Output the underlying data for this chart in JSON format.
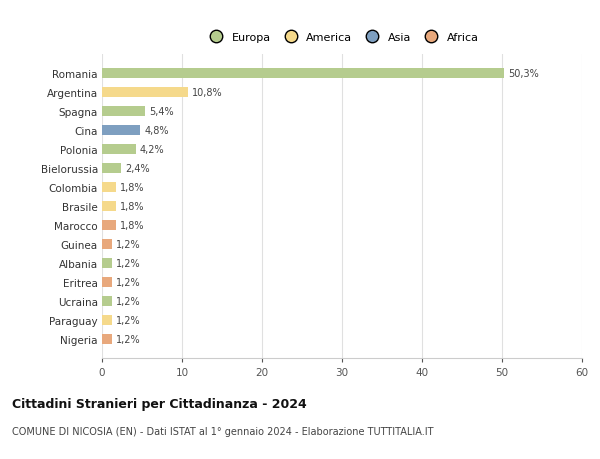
{
  "countries": [
    "Romania",
    "Argentina",
    "Spagna",
    "Cina",
    "Polonia",
    "Bielorussia",
    "Colombia",
    "Brasile",
    "Marocco",
    "Guinea",
    "Albania",
    "Eritrea",
    "Ucraina",
    "Paraguay",
    "Nigeria"
  ],
  "values": [
    50.3,
    10.8,
    5.4,
    4.8,
    4.2,
    2.4,
    1.8,
    1.8,
    1.8,
    1.2,
    1.2,
    1.2,
    1.2,
    1.2,
    1.2
  ],
  "labels": [
    "50,3%",
    "10,8%",
    "5,4%",
    "4,8%",
    "4,2%",
    "2,4%",
    "1,8%",
    "1,8%",
    "1,8%",
    "1,2%",
    "1,2%",
    "1,2%",
    "1,2%",
    "1,2%",
    "1,2%"
  ],
  "continents": [
    "Europa",
    "America",
    "Europa",
    "Asia",
    "Europa",
    "Europa",
    "America",
    "America",
    "Africa",
    "Africa",
    "Europa",
    "Africa",
    "Europa",
    "America",
    "Africa"
  ],
  "continent_colors": {
    "Europa": "#b5cc8e",
    "America": "#f5d98b",
    "Asia": "#7e9fc0",
    "Africa": "#e8a87c"
  },
  "legend_order": [
    "Europa",
    "America",
    "Asia",
    "Africa"
  ],
  "legend_colors": [
    "#b5cc8e",
    "#f5d98b",
    "#7e9fc0",
    "#e8a87c"
  ],
  "title": "Cittadini Stranieri per Cittadinanza - 2024",
  "subtitle": "COMUNE DI NICOSIA (EN) - Dati ISTAT al 1° gennaio 2024 - Elaborazione TUTTITALIA.IT",
  "xlim": [
    0,
    60
  ],
  "xticks": [
    0,
    10,
    20,
    30,
    40,
    50,
    60
  ],
  "bg_color": "#ffffff",
  "grid_color": "#e0e0e0",
  "bar_height": 0.55
}
